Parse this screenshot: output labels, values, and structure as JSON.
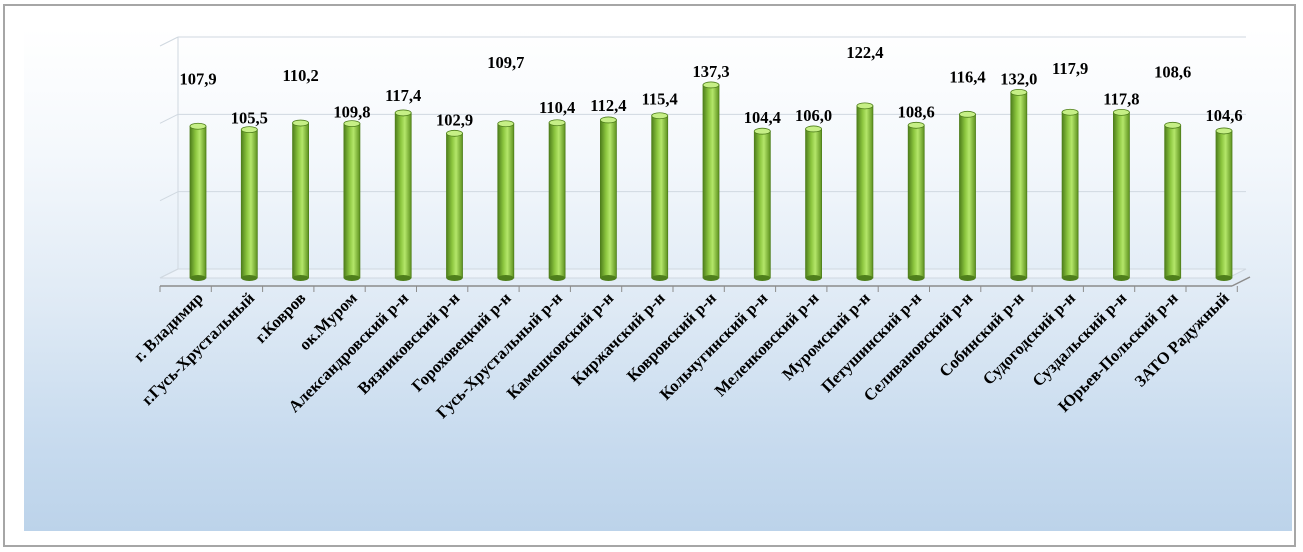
{
  "chart_data": {
    "type": "bar",
    "title": "",
    "xlabel": "",
    "ylabel": "",
    "categories": [
      "г. Владимир",
      "г.Гусь-Хрустальный",
      "г.Ковров",
      "ок.Муром",
      "Александровский р-н",
      "Вязниковский р-н",
      "Гороховецкий р-н",
      "Гусь-Хрустальный р-н",
      "Камешковский р-н",
      "Киржачский р-н",
      "Ковровский р-н",
      "Кольчугинский р-н",
      "Меленковский р-н",
      "Муромский р-н",
      "Петушинский р-н",
      "Селивановский р-н",
      "Собинский р-н",
      "Судогодский р-н",
      "Суздальский р-н",
      "Юрьев-Польский р-н",
      "ЗАТО Радужный"
    ],
    "values": [
      107.9,
      105.5,
      110.2,
      109.8,
      117.4,
      102.9,
      109.7,
      110.4,
      112.4,
      115.4,
      137.3,
      104.4,
      106.0,
      122.4,
      108.6,
      116.4,
      132.0,
      117.9,
      117.8,
      108.6,
      104.6
    ],
    "value_labels": [
      "107,9",
      "105,5",
      "110,2",
      "109,8",
      "117,4",
      "102,9",
      "109,7",
      "110,4",
      "112,4",
      "115,4",
      "137,3",
      "104,4",
      "106,0",
      "122,4",
      "108,6",
      "116,4",
      "132,0",
      "117,9",
      "117,8",
      "108,6",
      "104,6"
    ],
    "ylim": [
      0,
      165
    ],
    "grid": true,
    "legend": "none",
    "colors": {
      "bar_light": "#b4e66a",
      "bar_mid": "#8cc63f",
      "bar_dark": "#4f7f1c",
      "bar_top": "#c6ef86",
      "grid": "#d0d8e0",
      "axis": "#8c8c8c"
    }
  }
}
